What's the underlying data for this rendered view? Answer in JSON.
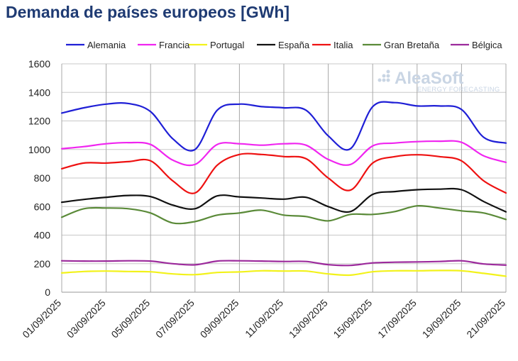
{
  "chart_data": {
    "type": "line",
    "title": "Demanda de países europeos [GWh]",
    "xlabel": "",
    "ylabel": "",
    "ylim": [
      0,
      1600
    ],
    "yticks": [
      0,
      200,
      400,
      600,
      800,
      1000,
      1200,
      1400,
      1600
    ],
    "x": [
      "01/09/2025",
      "02/09/2025",
      "03/09/2025",
      "04/09/2025",
      "05/09/2025",
      "06/09/2025",
      "07/09/2025",
      "08/09/2025",
      "09/09/2025",
      "10/09/2025",
      "11/09/2025",
      "12/09/2025",
      "13/09/2025",
      "14/09/2025",
      "15/09/2025",
      "16/09/2025",
      "17/09/2025",
      "18/09/2025",
      "19/09/2025",
      "20/09/2025",
      "21/09/2025"
    ],
    "x_tick_labels": [
      "01/09/2025",
      "03/09/2025",
      "05/09/2025",
      "07/09/2025",
      "09/09/2025",
      "11/09/2025",
      "13/09/2025",
      "15/09/2025",
      "17/09/2025",
      "19/09/2025",
      "21/09/2025"
    ],
    "grid": true,
    "legend_position": "top",
    "series": [
      {
        "name": "Alemania",
        "color": "#1f1fd6",
        "values": [
          1255,
          1292,
          1318,
          1322,
          1265,
          1075,
          1000,
          1275,
          1318,
          1300,
          1292,
          1275,
          1095,
          1005,
          1300,
          1328,
          1305,
          1305,
          1280,
          1085,
          1045
        ]
      },
      {
        "name": "Francia",
        "color": "#f025f0",
        "values": [
          1005,
          1020,
          1040,
          1048,
          1035,
          925,
          895,
          1035,
          1040,
          1030,
          1040,
          1030,
          930,
          895,
          1025,
          1045,
          1055,
          1058,
          1050,
          955,
          910
        ]
      },
      {
        "name": "Portugal",
        "color": "#f2f21a",
        "values": [
          135,
          145,
          148,
          145,
          143,
          128,
          123,
          138,
          142,
          150,
          148,
          148,
          128,
          120,
          143,
          150,
          150,
          152,
          150,
          132,
          112
        ]
      },
      {
        "name": "España",
        "color": "#111111",
        "values": [
          630,
          650,
          665,
          678,
          670,
          610,
          585,
          675,
          668,
          660,
          652,
          665,
          600,
          565,
          685,
          705,
          718,
          722,
          718,
          635,
          563
        ]
      },
      {
        "name": "Italia",
        "color": "#ee1111",
        "values": [
          865,
          905,
          905,
          915,
          920,
          780,
          695,
          890,
          965,
          965,
          950,
          935,
          800,
          715,
          905,
          950,
          963,
          950,
          920,
          780,
          695
        ]
      },
      {
        "name": "Gran Bretaña",
        "color": "#5a8a38",
        "values": [
          525,
          585,
          590,
          585,
          555,
          485,
          495,
          540,
          555,
          575,
          540,
          530,
          500,
          545,
          545,
          565,
          605,
          590,
          570,
          555,
          510
        ]
      },
      {
        "name": "Bélgica",
        "color": "#9c2a9c",
        "values": [
          220,
          218,
          218,
          220,
          218,
          200,
          192,
          218,
          220,
          218,
          215,
          215,
          193,
          188,
          205,
          210,
          212,
          215,
          220,
          198,
          190
        ]
      }
    ],
    "watermark": {
      "brand": "AleaSoft",
      "tagline": "ENERGY FORECASTING"
    }
  }
}
